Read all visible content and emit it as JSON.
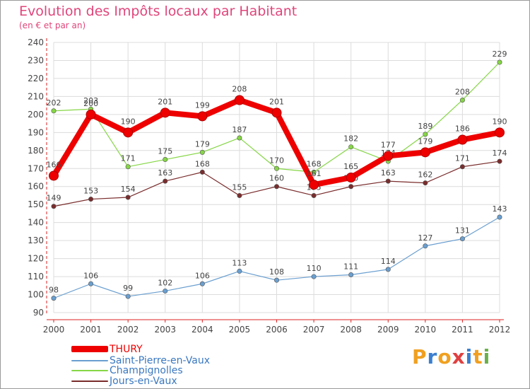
{
  "title": "Evolution des Impôts locaux par Habitant",
  "subtitle": "(en € et par an)",
  "logo": {
    "text": "Proxiti",
    "colors": [
      "#f0a020",
      "#3a7fd0",
      "#f0a020",
      "#e04040",
      "#3a7fd0",
      "#f0a020",
      "#6ab04a"
    ]
  },
  "chart_data": {
    "type": "line",
    "title": "Evolution des Impôts locaux par Habitant",
    "subtitle": "(en € et par an)",
    "x": [
      "2000",
      "2001",
      "2002",
      "2003",
      "2004",
      "2005",
      "2006",
      "2007",
      "2008",
      "2009",
      "2010",
      "2011",
      "2012"
    ],
    "ylim": [
      90,
      240
    ],
    "yticks": [
      90,
      100,
      110,
      120,
      130,
      140,
      150,
      160,
      170,
      180,
      190,
      200,
      210,
      220,
      230,
      240
    ],
    "grid": true,
    "legend_position": "bottom-left",
    "series": [
      {
        "name": "THURY",
        "color": "#ee0000",
        "emphasis": true,
        "values": [
          166,
          200,
          190,
          201,
          199,
          208,
          201,
          161,
          165,
          177,
          179,
          186,
          190
        ]
      },
      {
        "name": "Saint-Pierre-en-Vaux",
        "color": "#6a9fd0",
        "values": [
          98,
          106,
          99,
          102,
          106,
          113,
          108,
          110,
          111,
          114,
          127,
          131,
          143
        ]
      },
      {
        "name": "Champignolles",
        "color": "#86d646",
        "values": [
          202,
          203,
          171,
          175,
          179,
          187,
          170,
          168,
          182,
          174,
          189,
          208,
          229
        ]
      },
      {
        "name": "Jours-en-Vaux",
        "color": "#7a2c2c",
        "values": [
          149,
          153,
          154,
          163,
          168,
          155,
          160,
          155,
          160,
          163,
          162,
          171,
          174
        ]
      }
    ]
  }
}
